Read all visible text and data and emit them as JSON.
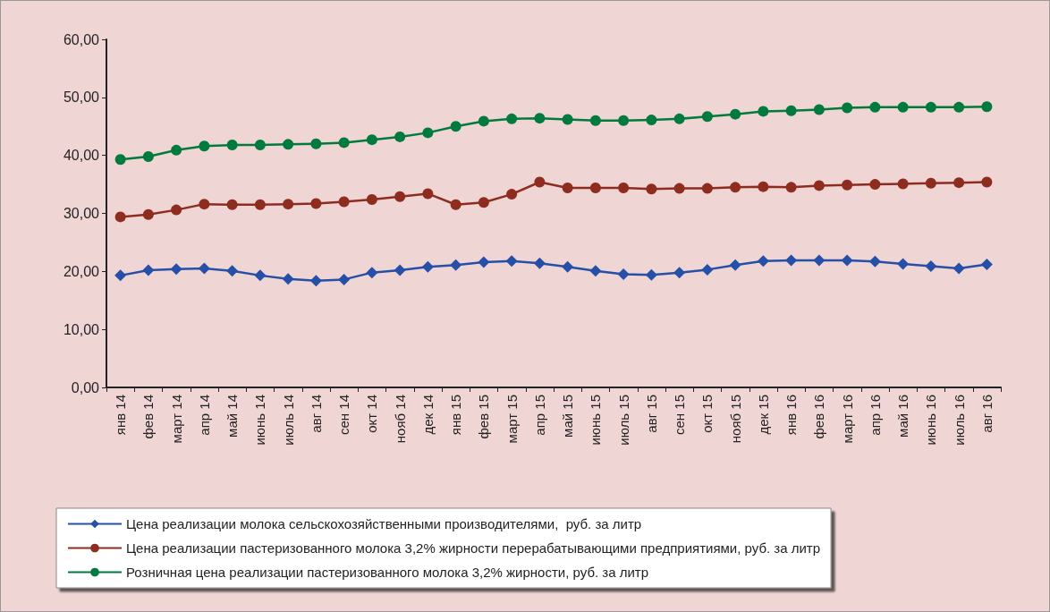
{
  "chart_data": {
    "type": "line",
    "categories": [
      "янв 14",
      "фев 14",
      "март 14",
      "апр 14",
      "май 14",
      "июнь 14",
      "июль 14",
      "авг 14",
      "сен 14",
      "окт 14",
      "нояб 14",
      "дек 14",
      "янв 15",
      "фев 15",
      "март 15",
      "апр 15",
      "май 15",
      "июнь 15",
      "июль 15",
      "авг 15",
      "сен 15",
      "окт 15",
      "нояб 15",
      "дек 15",
      "янв 16",
      "фев 16",
      "март 16",
      "апр 16",
      "май 16",
      "июнь 16",
      "июль 16",
      "авг 16"
    ],
    "series": [
      {
        "name": "Цена реализации молока сельскохозяйственными производителями,  руб. за литр",
        "color": "#2650a8",
        "marker": "diamond",
        "values": [
          19.3,
          20.2,
          20.4,
          20.5,
          20.1,
          19.3,
          18.7,
          18.4,
          18.6,
          19.8,
          20.2,
          20.8,
          21.1,
          21.6,
          21.8,
          21.4,
          20.8,
          20.1,
          19.5,
          19.4,
          19.8,
          20.3,
          21.1,
          21.8,
          21.9,
          21.9,
          21.9,
          21.7,
          21.3,
          20.9,
          20.5,
          21.2
        ]
      },
      {
        "name": "Цена реализации пастеризованного молока 3,2% жирности перерабатывающими предприятиями, руб. за литр",
        "color": "#8e2c1f",
        "marker": "circle",
        "values": [
          29.4,
          29.8,
          30.6,
          31.6,
          31.5,
          31.5,
          31.6,
          31.7,
          32.0,
          32.4,
          32.9,
          33.4,
          31.5,
          31.9,
          33.3,
          35.4,
          34.4,
          34.4,
          34.4,
          34.2,
          34.3,
          34.3,
          34.5,
          34.6,
          34.5,
          34.8,
          34.9,
          35.0,
          35.1,
          35.2,
          35.3,
          35.4
        ]
      },
      {
        "name": "Розничная цена реализации пастеризованного молока 3,2% жирности, руб. за литр",
        "color": "#007a3d",
        "marker": "circle",
        "values": [
          39.3,
          39.8,
          40.9,
          41.6,
          41.8,
          41.8,
          41.9,
          42.0,
          42.2,
          42.7,
          43.2,
          43.9,
          45.0,
          45.9,
          46.3,
          46.4,
          46.2,
          46.0,
          46.0,
          46.1,
          46.3,
          46.7,
          47.1,
          47.6,
          47.7,
          47.9,
          48.2,
          48.3,
          48.3,
          48.3,
          48.3,
          48.4
        ]
      }
    ],
    "ylim": [
      0,
      60
    ],
    "yticks": [
      {
        "value": 0,
        "label": "0,00"
      },
      {
        "value": 10,
        "label": "10,00"
      },
      {
        "value": 20,
        "label": "20,00"
      },
      {
        "value": 30,
        "label": "30,00"
      },
      {
        "value": 40,
        "label": "40,00"
      },
      {
        "value": 50,
        "label": "50,00"
      },
      {
        "value": 60,
        "label": "60,00"
      }
    ],
    "grid": false,
    "legend": "bottom",
    "line_style": "solid"
  }
}
